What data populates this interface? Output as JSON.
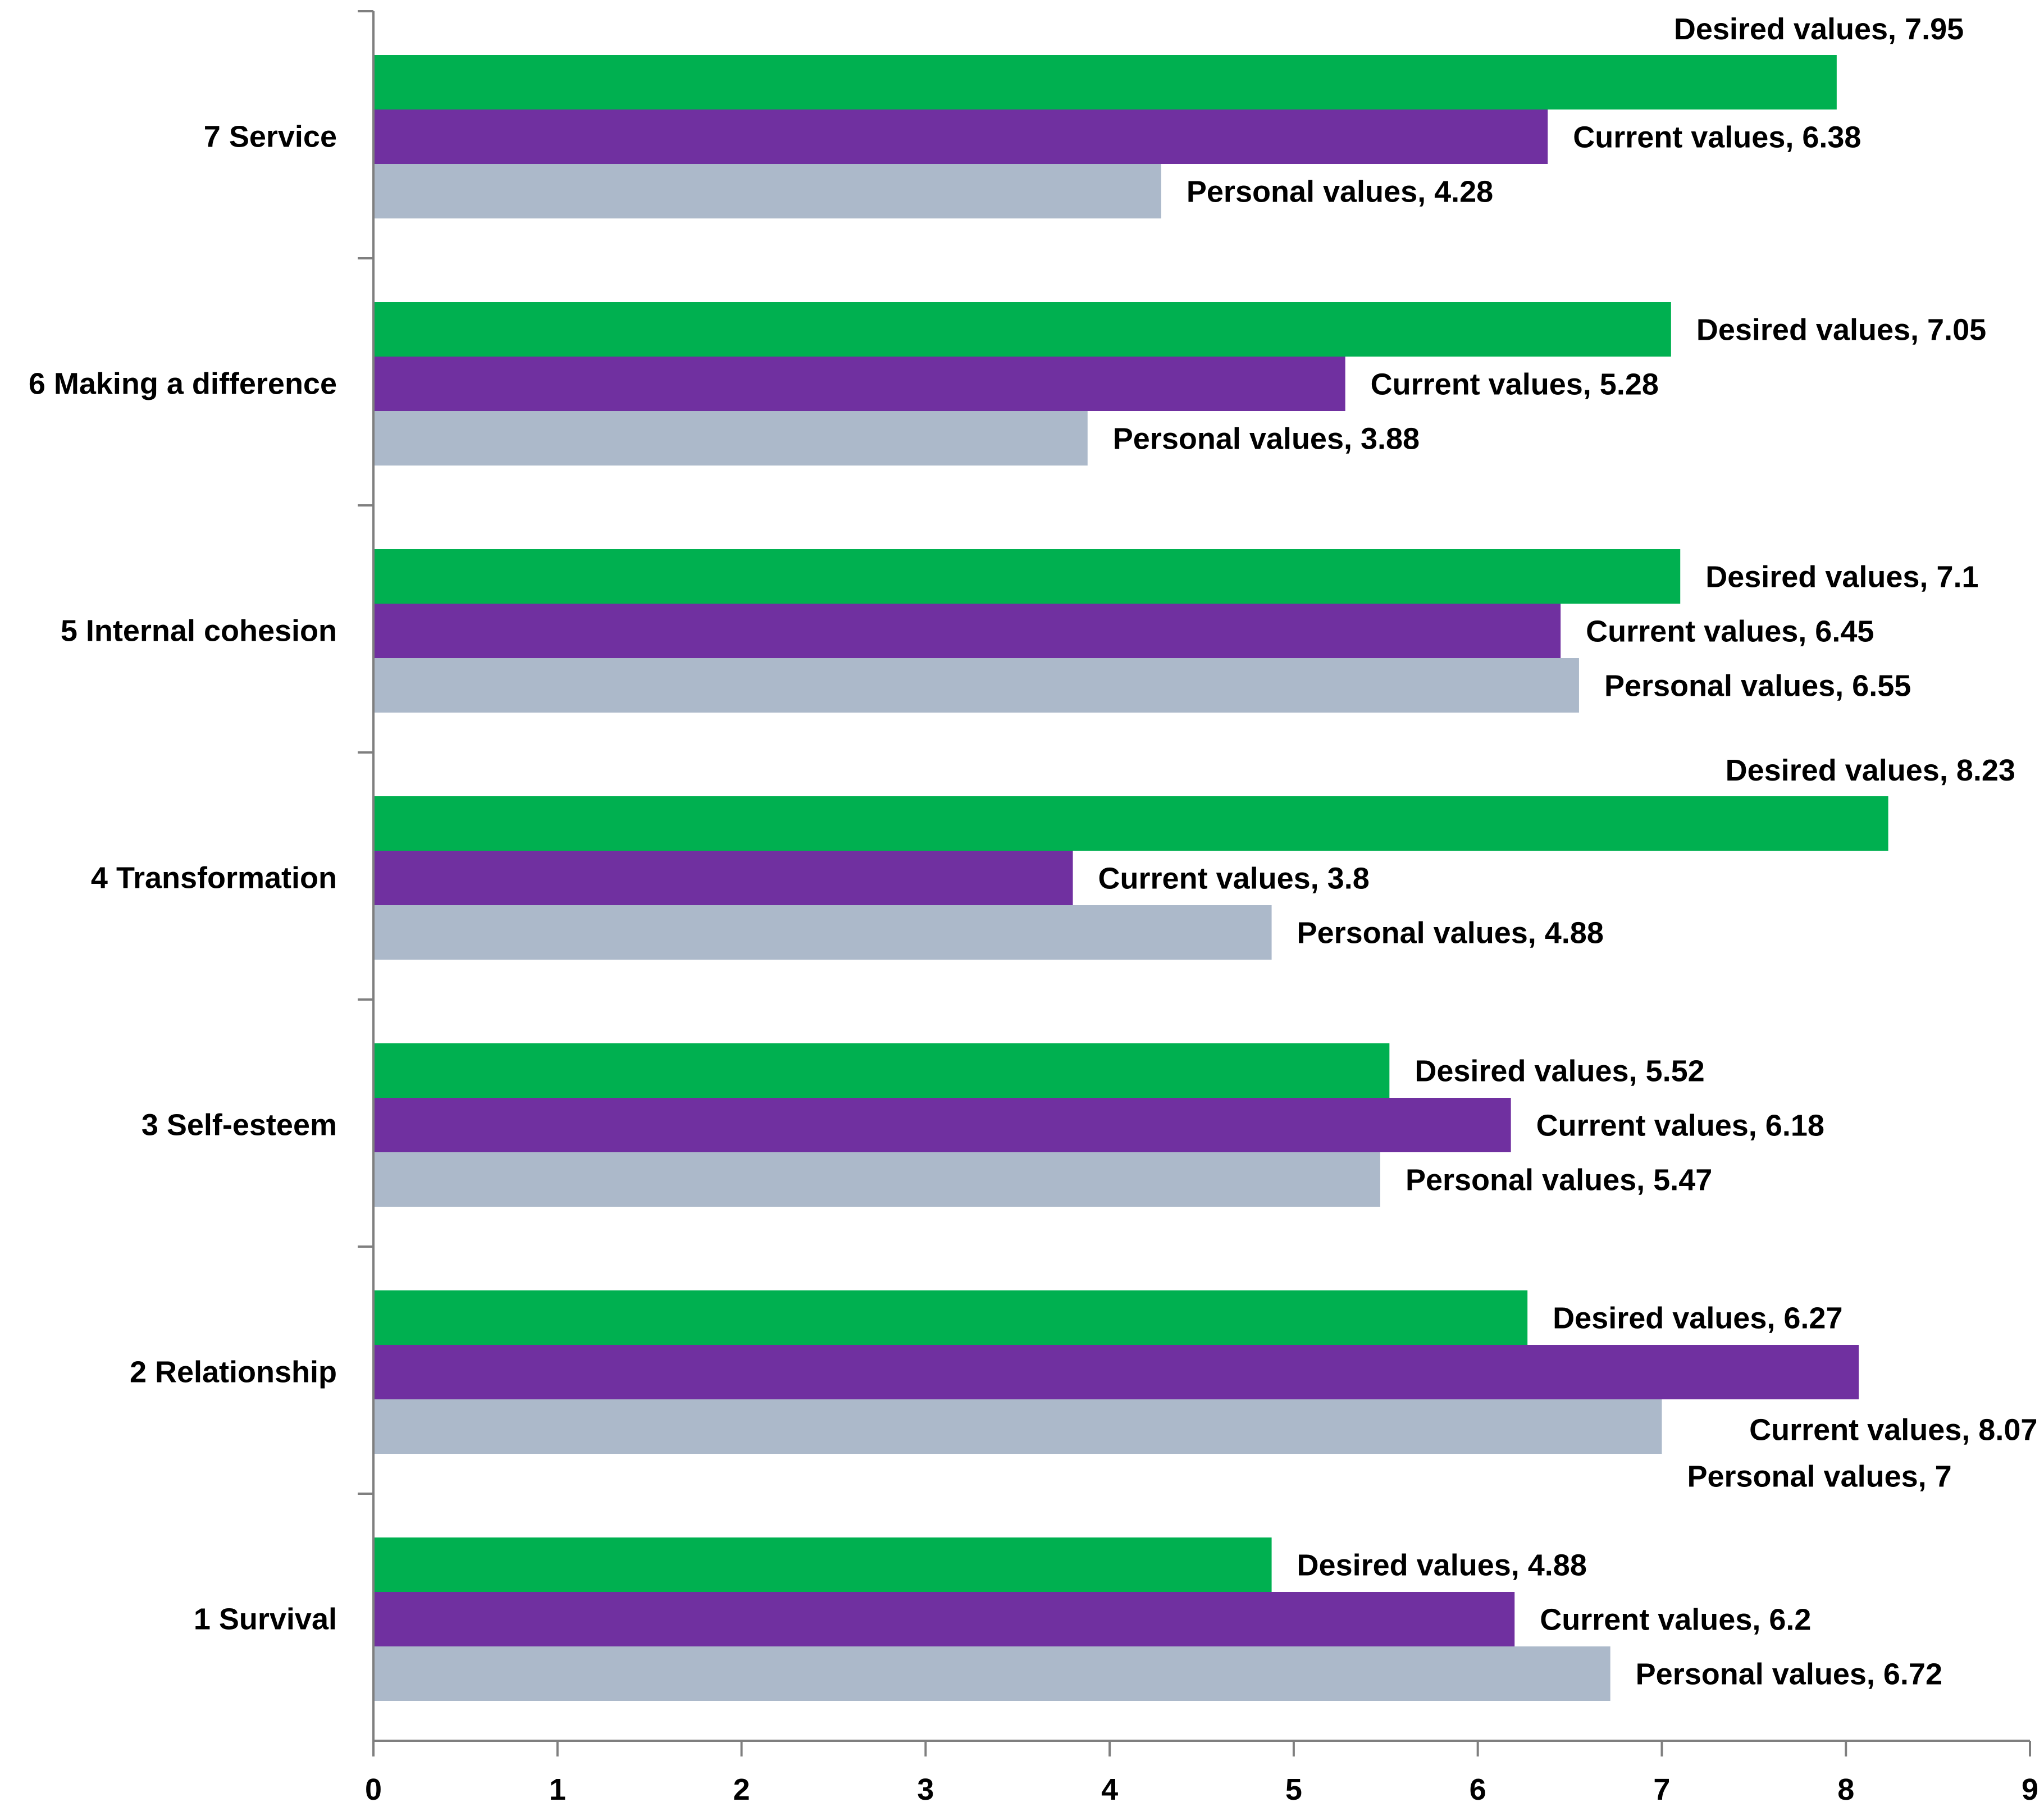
{
  "chart_data": {
    "type": "bar",
    "orientation": "horizontal",
    "categories": [
      "1 Survival",
      "2 Relationship",
      "3 Self-esteem",
      "4 Transformation",
      "5 Internal cohesion",
      "6 Making a difference",
      "7 Service"
    ],
    "series": [
      {
        "name": "Desired values",
        "color": "#00b050",
        "values": [
          4.88,
          6.27,
          5.52,
          8.23,
          7.1,
          7.05,
          7.95
        ],
        "labels": [
          "Desired values, 4.88",
          "Desired values, 6.27",
          "Desired values, 5.52",
          "Desired values, 8.23",
          "Desired values, 7.1",
          "Desired values, 7.05",
          "Desired values, 7.95"
        ]
      },
      {
        "name": "Current values",
        "color": "#7030a0",
        "values": [
          6.2,
          8.07,
          6.18,
          3.8,
          6.45,
          5.28,
          6.38
        ],
        "labels": [
          "Current values, 6.2",
          "Current values, 8.07",
          "Current values, 6.18",
          "Current values, 3.8",
          "Current values, 6.45",
          "Current values, 5.28",
          "Current values, 6.38"
        ]
      },
      {
        "name": "Personal values",
        "color": "#acb9ca",
        "values": [
          6.72,
          7,
          5.47,
          4.88,
          6.55,
          3.88,
          4.28
        ],
        "labels": [
          "Personal values, 6.72",
          "Personal values, 7",
          "Personal values, 5.47",
          "Personal values, 4.88",
          "Personal values, 6.55",
          "Personal values, 3.88",
          "Personal values, 4.28"
        ]
      }
    ],
    "xlim": [
      0,
      9
    ],
    "xticks": [
      "0",
      "1",
      "2",
      "3",
      "4",
      "5",
      "6",
      "7",
      "8",
      "9"
    ],
    "title": "",
    "xlabel": "",
    "ylabel": "",
    "grid": false,
    "legend": "none"
  }
}
